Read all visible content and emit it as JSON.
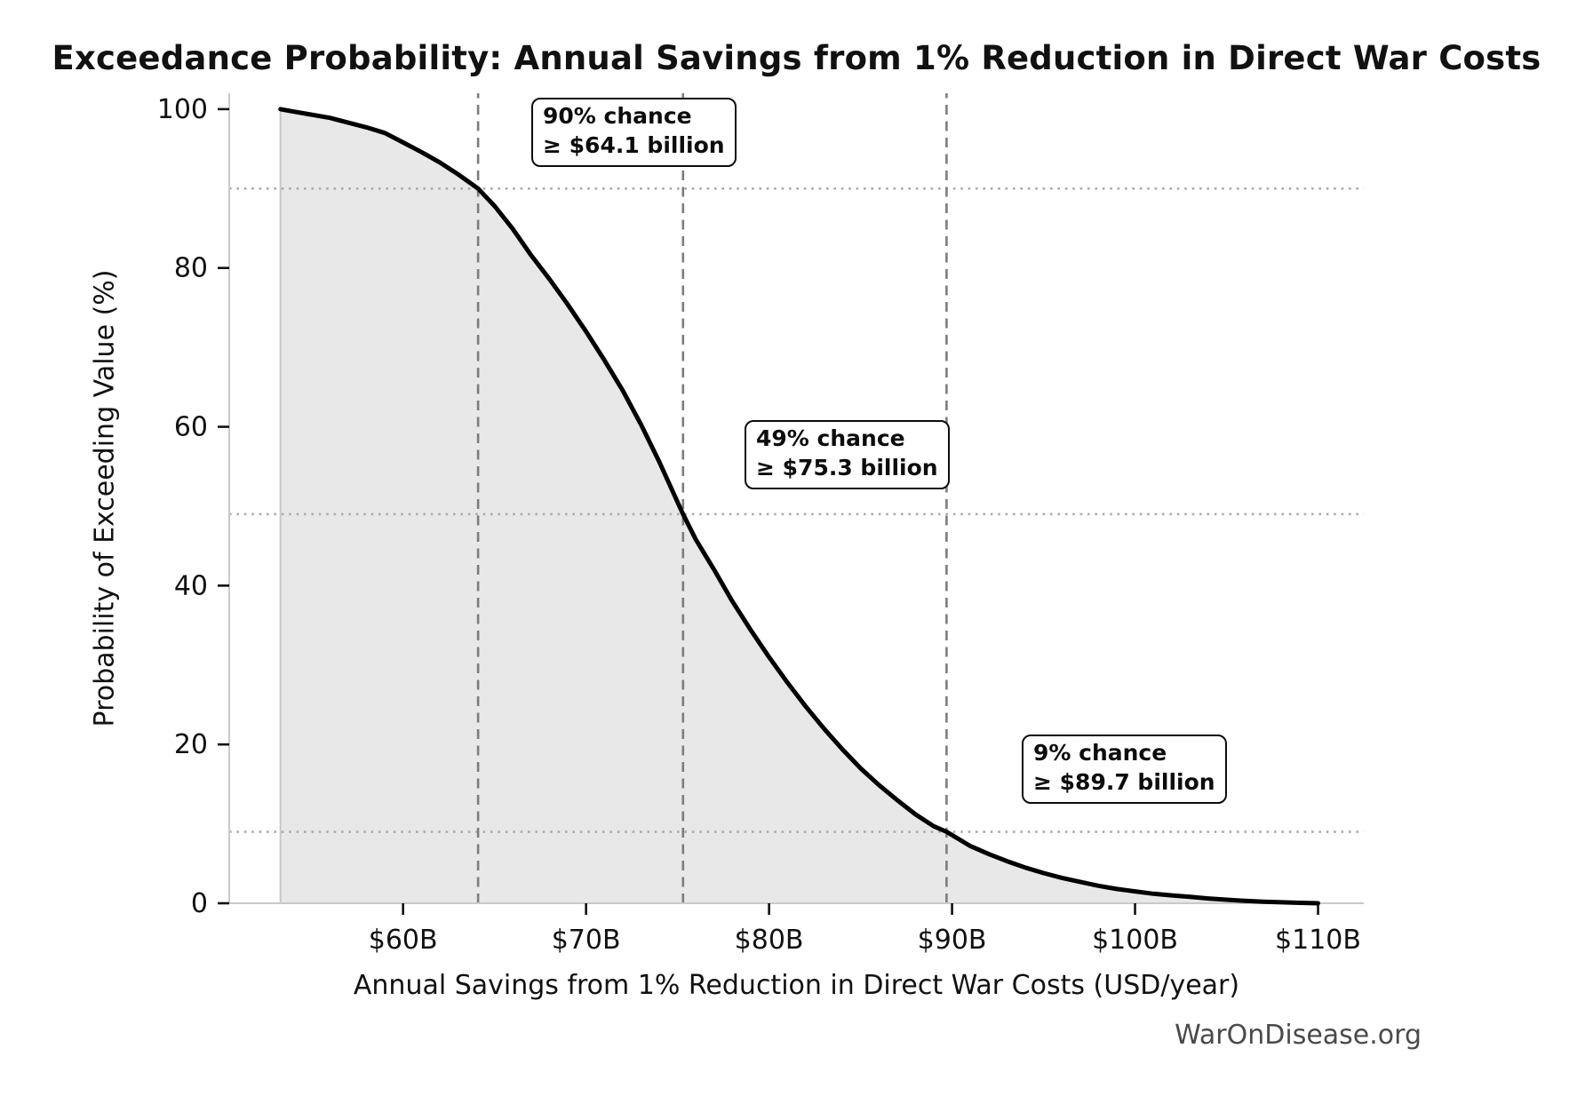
{
  "title": "Exceedance Probability: Annual Savings from 1% Reduction in Direct War Costs",
  "watermark": "WarOnDisease.org",
  "annotations": [
    {
      "line1": "90% chance",
      "line2": "≥ $64.1 billion",
      "at_x": 64.1,
      "at_probability": 90
    },
    {
      "line1": "49% chance",
      "line2": "≥ $75.3 billion",
      "at_x": 75.3,
      "at_probability": 49
    },
    {
      "line1": "9% chance",
      "line2": "≥ $89.7 billion",
      "at_x": 89.7,
      "at_probability": 9
    }
  ],
  "chart_data": {
    "type": "area",
    "title": "Exceedance Probability: Annual Savings from 1% Reduction in Direct War Costs",
    "xlabel": "Annual Savings from 1% Reduction in Direct War Costs (USD/year)",
    "ylabel": "Probability of Exceeding Value (%)",
    "xlim": [
      50.5,
      112.5
    ],
    "ylim": [
      0,
      102
    ],
    "x_ticks": [
      60,
      70,
      80,
      90,
      100,
      110
    ],
    "x_tick_labels": [
      "$60B",
      "$70B",
      "$80B",
      "$90B",
      "$100B",
      "$110B"
    ],
    "y_ticks": [
      0,
      20,
      40,
      60,
      80,
      100
    ],
    "y_tick_labels": [
      "0",
      "20",
      "40",
      "60",
      "80",
      "100"
    ],
    "grid": false,
    "legend": "none",
    "series": [
      {
        "name": "exceedance-curve",
        "x": [
          53.3,
          54,
          55,
          56,
          57,
          58,
          59,
          60,
          61,
          62,
          63,
          64.1,
          65,
          66,
          67,
          68,
          69,
          70,
          71,
          72,
          73,
          74,
          75.3,
          76,
          77,
          78,
          79,
          80,
          81,
          82,
          83,
          84,
          85,
          86,
          87,
          88,
          89,
          89.7,
          91,
          92,
          93,
          94,
          95,
          96,
          97,
          98,
          99,
          100,
          101,
          102,
          103,
          104,
          105,
          106,
          107,
          108,
          109,
          110
        ],
        "y": [
          100,
          99.7,
          99.3,
          98.9,
          98.3,
          97.7,
          97.0,
          95.8,
          94.6,
          93.3,
          91.8,
          90.0,
          87.8,
          84.9,
          81.6,
          78.6,
          75.4,
          72.0,
          68.4,
          64.6,
          60.3,
          55.6,
          49.0,
          45.8,
          42.0,
          38.0,
          34.4,
          31.0,
          27.8,
          24.8,
          22.0,
          19.4,
          17.0,
          14.9,
          13.0,
          11.2,
          9.7,
          9.0,
          7.2,
          6.2,
          5.3,
          4.5,
          3.8,
          3.2,
          2.7,
          2.2,
          1.8,
          1.5,
          1.2,
          1.0,
          0.8,
          0.6,
          0.45,
          0.3,
          0.2,
          0.12,
          0.06,
          0.0
        ]
      }
    ],
    "reference_lines": {
      "vertical_dashed_x": [
        64.1,
        75.3,
        89.7
      ],
      "horizontal_dotted_probability": [
        90,
        49,
        9
      ]
    },
    "colors": {
      "curve": "#000000",
      "fill": "#e8e8e8",
      "fill_edge": "#c8c8c8",
      "dashed_line": "#7d7d7d",
      "dotted_line": "#ababab",
      "spine": "#c9c9c9",
      "tick": "#111111",
      "text": "#111111",
      "watermark": "#4a4a4a",
      "background": "#ffffff"
    }
  }
}
